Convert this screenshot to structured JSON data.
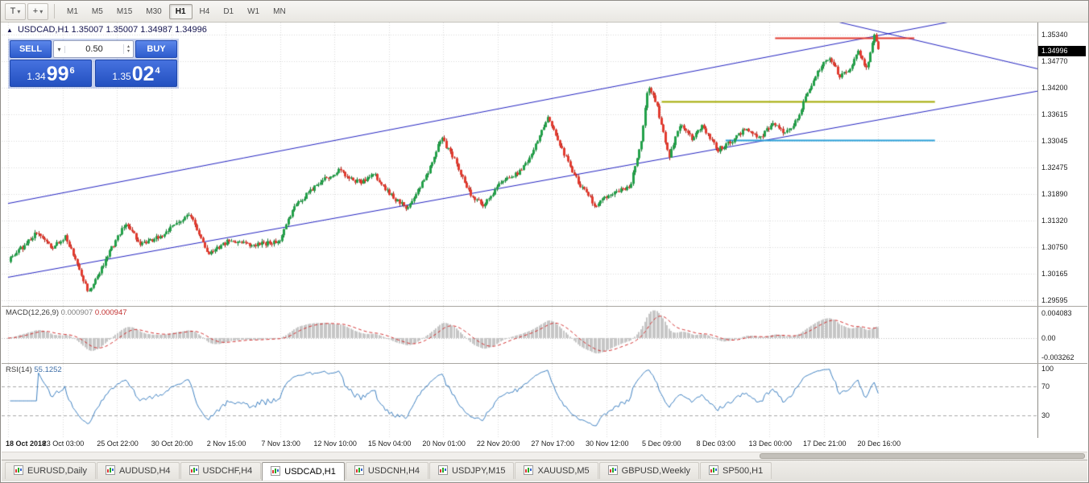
{
  "toolbar": {
    "tools": [
      {
        "name": "chart-mode-button",
        "glyph": "T",
        "caret": true
      },
      {
        "name": "objects-tool-button",
        "glyph": "+",
        "caret": true
      }
    ],
    "timeframes": [
      {
        "label": "M1",
        "active": false
      },
      {
        "label": "M5",
        "active": false
      },
      {
        "label": "M15",
        "active": false
      },
      {
        "label": "M30",
        "active": false
      },
      {
        "label": "H1",
        "active": true
      },
      {
        "label": "H4",
        "active": false
      },
      {
        "label": "D1",
        "active": false
      },
      {
        "label": "W1",
        "active": false
      },
      {
        "label": "MN",
        "active": false
      }
    ]
  },
  "chart": {
    "title": "USDCAD,H1",
    "ohlc": "1.35007 1.35007 1.34987 1.34996"
  },
  "trade_panel": {
    "sell_label": "SELL",
    "buy_label": "BUY",
    "volume": "0.50",
    "sell_big": "1.34",
    "sell_pips": "99",
    "sell_pt": "6",
    "buy_big": "1.35",
    "buy_pips": "02",
    "buy_pt": "4"
  },
  "chart_data": {
    "type": "candlestick",
    "symbol": "USDCAD",
    "timeframe": "H1",
    "current_price": "1.34996",
    "y_range": [
      1.2947,
      1.3561
    ],
    "y_ticks": [
      "1.35340",
      "1.34770",
      "1.34200",
      "1.33615",
      "1.33045",
      "1.32475",
      "1.31890",
      "1.31320",
      "1.30750",
      "1.30165",
      "1.29595"
    ],
    "x_labels": [
      "18 Oct 2018",
      "23 Oct 03:00",
      "25 Oct 22:00",
      "30 Oct 20:00",
      "2 Nov 15:00",
      "7 Nov 13:00",
      "12 Nov 10:00",
      "15 Nov 04:00",
      "20 Nov 01:00",
      "22 Nov 20:00",
      "27 Nov 17:00",
      "30 Nov 12:00",
      "5 Dec 09:00",
      "8 Dec 03:00",
      "13 Dec 00:00",
      "17 Dec 21:00",
      "20 Dec 16:00"
    ],
    "candles": {
      "count": 430,
      "end_fraction": 0.844,
      "seed": 20181220,
      "noise": 0.001,
      "wick": 0.0006
    },
    "keyframes": [
      [
        0.0,
        1.3047
      ],
      [
        0.014,
        1.3075
      ],
      [
        0.027,
        1.3107
      ],
      [
        0.043,
        1.3071
      ],
      [
        0.055,
        1.3098
      ],
      [
        0.066,
        1.304
      ],
      [
        0.078,
        1.2974
      ],
      [
        0.098,
        1.3062
      ],
      [
        0.113,
        1.3125
      ],
      [
        0.129,
        1.308
      ],
      [
        0.148,
        1.3098
      ],
      [
        0.176,
        1.3148
      ],
      [
        0.194,
        1.3062
      ],
      [
        0.215,
        1.3089
      ],
      [
        0.234,
        1.308
      ],
      [
        0.262,
        1.3084
      ],
      [
        0.277,
        1.316
      ],
      [
        0.301,
        1.3214
      ],
      [
        0.32,
        1.324
      ],
      [
        0.34,
        1.3214
      ],
      [
        0.355,
        1.3231
      ],
      [
        0.375,
        1.3178
      ],
      [
        0.387,
        1.316
      ],
      [
        0.406,
        1.3231
      ],
      [
        0.42,
        1.3312
      ],
      [
        0.434,
        1.3258
      ],
      [
        0.449,
        1.3187
      ],
      [
        0.461,
        1.3166
      ],
      [
        0.478,
        1.3214
      ],
      [
        0.496,
        1.3237
      ],
      [
        0.509,
        1.328
      ],
      [
        0.523,
        1.3356
      ],
      [
        0.539,
        1.3276
      ],
      [
        0.553,
        1.3214
      ],
      [
        0.57,
        1.3164
      ],
      [
        0.588,
        1.3196
      ],
      [
        0.603,
        1.3205
      ],
      [
        0.613,
        1.3294
      ],
      [
        0.621,
        1.3427
      ],
      [
        0.629,
        1.3382
      ],
      [
        0.641,
        1.3267
      ],
      [
        0.652,
        1.3347
      ],
      [
        0.663,
        1.3308
      ],
      [
        0.673,
        1.3338
      ],
      [
        0.688,
        1.3285
      ],
      [
        0.699,
        1.33
      ],
      [
        0.715,
        1.333
      ],
      [
        0.73,
        1.3312
      ],
      [
        0.742,
        1.3345
      ],
      [
        0.754,
        1.332
      ],
      [
        0.766,
        1.3355
      ],
      [
        0.777,
        1.342
      ],
      [
        0.789,
        1.347
      ],
      [
        0.797,
        1.3488
      ],
      [
        0.806,
        1.3445
      ],
      [
        0.816,
        1.346
      ],
      [
        0.824,
        1.3498
      ],
      [
        0.832,
        1.346
      ],
      [
        0.84,
        1.3534
      ],
      [
        0.844,
        1.35
      ]
    ],
    "overlays": {
      "trendlines": [
        {
          "x1": 0.0,
          "p1": 1.3169,
          "x2": 1.0,
          "p2": 1.36,
          "color": "#2222c0",
          "width": 1
        },
        {
          "x1": 0.0,
          "p1": 1.3009,
          "x2": 1.0,
          "p2": 1.3413,
          "color": "#2222c0",
          "width": 1
        },
        {
          "x1": 0.8,
          "p1": 1.3565,
          "x2": 1.0,
          "p2": 1.346,
          "color": "#2222c0",
          "width": 1
        }
      ],
      "hlines": [
        {
          "price": 1.3528,
          "x1": 0.744,
          "x2": 0.879,
          "color": "#e23b2f",
          "width": 2
        },
        {
          "price": 1.339,
          "x1": 0.634,
          "x2": 0.899,
          "color": "#a3aa00",
          "width": 2
        },
        {
          "price": 1.3307,
          "x1": 0.696,
          "x2": 0.899,
          "color": "#2a9fd8",
          "width": 2
        }
      ]
    },
    "colors": {
      "up": "#23a14a",
      "up_dark": "#14732f",
      "down": "#e23b2f",
      "down_dark": "#a5221a",
      "grid": "#d9d9d9",
      "macd_hist": "#c6c6c6",
      "macd_signal": "#d23030",
      "rsi_line": "#3f81c1"
    },
    "macd": {
      "name": "MACD(12,26,9)",
      "value_main": "0.000907",
      "value_signal": "0.000947",
      "scale_labels": [
        "0.004083",
        "0.00",
        "-0.003262"
      ],
      "range": [
        -0.003262,
        0.004083
      ],
      "display_max": 0.0036
    },
    "rsi": {
      "name": "RSI(14)",
      "value": "55.1252",
      "scale_labels": [
        "100",
        "70",
        "30"
      ],
      "levels": [
        70,
        30
      ]
    }
  },
  "tabs": [
    {
      "label": "EURUSD,Daily",
      "active": false
    },
    {
      "label": "AUDUSD,H4",
      "active": false
    },
    {
      "label": "USDCHF,H4",
      "active": false
    },
    {
      "label": "USDCAD,H1",
      "active": true
    },
    {
      "label": "USDCNH,H4",
      "active": false
    },
    {
      "label": "USDJPY,M15",
      "active": false
    },
    {
      "label": "XAUUSD,M5",
      "active": false
    },
    {
      "label": "GBPUSD,Weekly",
      "active": false
    },
    {
      "label": "SP500,H1",
      "active": false
    }
  ]
}
